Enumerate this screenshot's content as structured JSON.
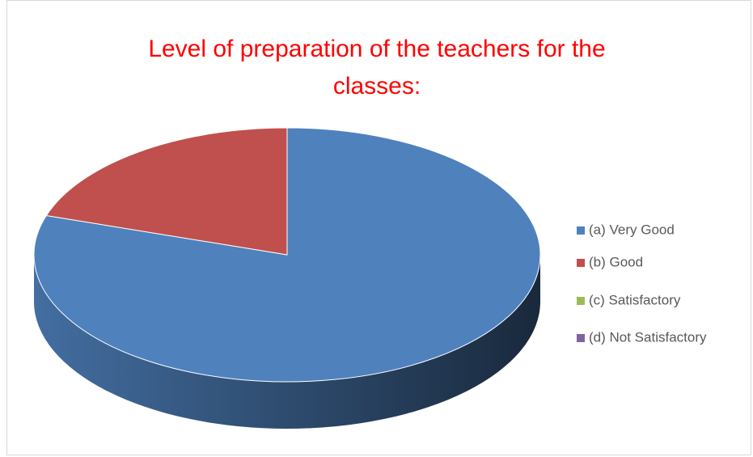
{
  "chart_data": {
    "type": "pie",
    "title": "Level of preparation of the teachers for the classes:",
    "categories": [
      "(a) Very Good",
      "(b) Good",
      "(c) Satisfactory",
      "(d) Not Satisfactory"
    ],
    "values": [
      80,
      20,
      0,
      0
    ],
    "colors": [
      "#4f81bd",
      "#c0504d",
      "#9bbb59",
      "#8064a2"
    ],
    "legend": "right"
  }
}
